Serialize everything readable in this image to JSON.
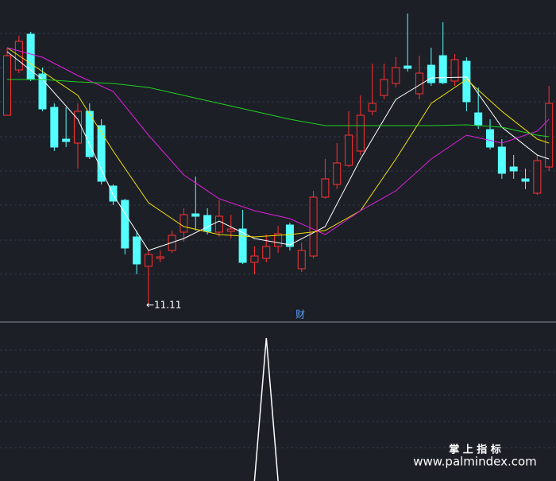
{
  "chart_data": {
    "type": "candlestick",
    "ylim": [
      10.88,
      14.93
    ],
    "up_color": "#ff3232",
    "down_color": "#54ffff",
    "open": [
      13.48,
      14.05,
      14.5,
      14.0,
      13.58,
      13.18,
      13.13,
      13.53,
      13.35,
      12.59,
      12.41,
      11.95,
      11.58,
      11.68,
      11.78,
      12.01,
      12.24,
      12.22,
      12.01,
      12.02,
      12.05,
      11.63,
      11.68,
      11.83,
      12.1,
      11.55,
      11.71,
      12.45,
      12.61,
      12.85,
      13.03,
      13.53,
      13.73,
      13.88,
      14.1,
      13.75,
      14.11,
      14.23,
      13.91,
      14.16,
      13.51,
      13.3,
      13.08,
      12.83,
      12.68,
      12.5,
      12.83
    ],
    "close": [
      14.23,
      14.41,
      13.93,
      13.56,
      13.08,
      13.15,
      13.53,
      12.96,
      12.65,
      12.4,
      11.81,
      11.61,
      11.73,
      11.7,
      11.97,
      12.23,
      12.21,
      12.02,
      12.21,
      12.05,
      11.63,
      11.71,
      11.83,
      11.99,
      11.83,
      11.78,
      12.45,
      12.68,
      12.88,
      13.23,
      13.48,
      13.63,
      13.93,
      14.08,
      14.07,
      14.01,
      13.89,
      13.89,
      14.18,
      13.65,
      13.36,
      13.08,
      12.75,
      12.78,
      12.65,
      12.91,
      13.63
    ],
    "high": [
      14.33,
      14.48,
      14.53,
      14.08,
      13.63,
      13.58,
      13.63,
      13.63,
      13.43,
      12.61,
      12.43,
      12.03,
      11.78,
      11.78,
      12.03,
      12.31,
      12.71,
      12.31,
      12.41,
      12.23,
      12.29,
      11.83,
      11.98,
      12.09,
      12.13,
      11.88,
      12.53,
      12.93,
      13.13,
      13.53,
      13.73,
      14.13,
      14.13,
      14.21,
      14.76,
      14.23,
      14.33,
      14.65,
      14.25,
      14.21,
      13.83,
      13.43,
      13.18,
      12.98,
      12.81,
      12.98,
      13.85
    ],
    "low": [
      13.48,
      14.01,
      13.91,
      13.53,
      13.03,
      13.08,
      12.81,
      12.93,
      12.61,
      12.35,
      11.73,
      11.48,
      11.11,
      11.63,
      11.75,
      11.89,
      12.03,
      11.98,
      11.95,
      11.93,
      11.61,
      11.48,
      11.63,
      11.75,
      11.78,
      11.51,
      11.68,
      12.43,
      12.55,
      12.83,
      12.98,
      13.48,
      13.68,
      13.83,
      14.03,
      13.68,
      13.85,
      13.87,
      13.85,
      13.53,
      13.31,
      13.05,
      12.68,
      12.68,
      12.55,
      12.48,
      12.78
    ],
    "lines": [
      {
        "color": "#ffffff",
        "x": [
          0,
          3,
          6,
          9,
          12,
          15,
          18,
          21,
          24,
          27,
          30,
          33,
          36,
          39,
          42,
          45,
          46
        ],
        "values": [
          14.28,
          13.93,
          13.43,
          12.48,
          11.78,
          11.93,
          12.15,
          11.93,
          11.85,
          12.08,
          12.93,
          13.68,
          13.95,
          13.96,
          13.33,
          12.98,
          12.93
        ]
      },
      {
        "color": "#f0e000",
        "x": [
          0,
          3,
          6,
          9,
          12,
          15,
          18,
          21,
          24,
          27,
          30,
          33,
          36,
          39,
          42,
          45,
          46
        ],
        "values": [
          14.33,
          14.03,
          13.73,
          13.03,
          12.38,
          12.08,
          11.98,
          11.95,
          11.98,
          12.03,
          12.28,
          12.93,
          13.63,
          13.93,
          13.53,
          13.18,
          13.13
        ]
      },
      {
        "color": "#e020e0",
        "x": [
          0,
          3,
          6,
          9,
          12,
          15,
          18,
          21,
          24,
          27,
          30,
          33,
          36,
          39,
          42,
          45,
          46
        ],
        "values": [
          14.33,
          14.21,
          13.98,
          13.78,
          13.23,
          12.73,
          12.43,
          12.28,
          12.18,
          11.98,
          12.28,
          12.53,
          12.93,
          13.23,
          13.13,
          13.28,
          13.43
        ]
      },
      {
        "color": "#20d020",
        "x": [
          0,
          3,
          6,
          9,
          12,
          15,
          18,
          21,
          24,
          27,
          30,
          33,
          36,
          39,
          42,
          45,
          46
        ],
        "values": [
          13.93,
          13.93,
          13.9,
          13.88,
          13.83,
          13.73,
          13.63,
          13.53,
          13.43,
          13.35,
          13.35,
          13.35,
          13.35,
          13.36,
          13.33,
          13.23,
          13.21
        ]
      }
    ],
    "low_annotation": {
      "index": 12,
      "value": 11.11,
      "label": "←11.11"
    },
    "panel_label": "财",
    "indicator": {
      "type": "line",
      "color": "#ffffff",
      "ylim": [
        0,
        1
      ],
      "x": [
        21,
        22,
        23
      ],
      "values": [
        0,
        1,
        0
      ]
    }
  },
  "watermark": {
    "title": "掌 上 指 标",
    "url": "www.palmindex.com"
  }
}
